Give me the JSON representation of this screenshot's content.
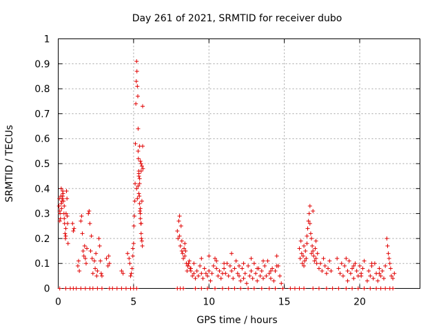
{
  "chart_data": {
    "type": "scatter",
    "title": "Day 261 of 2021, SRMTID for receiver dubo",
    "xlabel": "GPS time / hours",
    "ylabel": "SRMTID / TECUs",
    "xlim": [
      0,
      24
    ],
    "ylim": [
      0,
      1
    ],
    "xticks": [
      0,
      5,
      10,
      15,
      20
    ],
    "xtick_labels": [
      "0",
      "5",
      "10",
      "15",
      "20"
    ],
    "yticks": [
      0,
      0.1,
      0.2,
      0.3,
      0.4,
      0.5,
      0.6,
      0.7,
      0.8,
      0.9,
      1
    ],
    "ytick_labels": [
      "0",
      "0.1",
      "0.2",
      "0.3",
      "0.4",
      "0.5",
      "0.6",
      "0.7",
      "0.8",
      "0.9",
      "1"
    ],
    "grid": true,
    "marker": "plus",
    "color": "#e00000",
    "series": [
      {
        "name": "SRMTID",
        "x": [
          0.05,
          0.08,
          0.1,
          0.12,
          0.15,
          0.18,
          0.2,
          0.22,
          0.25,
          0.28,
          0.3,
          0.32,
          0.35,
          0.38,
          0.4,
          0.42,
          0.45,
          0.48,
          0.5,
          0.52,
          0.55,
          0.58,
          0.6,
          0.62,
          0.65,
          0.1,
          0.2,
          0.3,
          0.4,
          0.5,
          0.95,
          1.0,
          1.05,
          1.3,
          1.35,
          1.4,
          1.5,
          1.55,
          1.6,
          1.65,
          1.7,
          1.75,
          1.8,
          1.85,
          1.9,
          2.0,
          2.05,
          2.1,
          2.15,
          2.2,
          2.25,
          2.3,
          2.4,
          2.45,
          2.5,
          2.55,
          2.6,
          2.7,
          2.75,
          2.8,
          2.85,
          2.9,
          3.2,
          3.3,
          3.35,
          3.4,
          4.2,
          4.3,
          4.6,
          4.7,
          4.75,
          4.8,
          4.85,
          4.9,
          4.95,
          4.95,
          5.0,
          5.02,
          5.05,
          5.08,
          5.1,
          5.12,
          5.15,
          5.18,
          5.2,
          5.22,
          5.25,
          5.28,
          5.3,
          5.32,
          5.35,
          5.38,
          5.4,
          5.42,
          5.45,
          5.48,
          5.5,
          5.52,
          5.55,
          5.58,
          5.6,
          5.62,
          5.2,
          5.25,
          5.3,
          5.35,
          5.4,
          5.45,
          5.5,
          5.55,
          5.6,
          5.3,
          5.35,
          5.4,
          5.45,
          5.5,
          5.35,
          5.4,
          5.45,
          5.5,
          5.55,
          7.9,
          7.95,
          8.0,
          8.05,
          8.1,
          8.15,
          8.2,
          8.25,
          8.3,
          8.35,
          8.4,
          8.45,
          8.5,
          8.55,
          8.6,
          8.65,
          8.7,
          8.75,
          8.8,
          8.9,
          9.0,
          9.1,
          9.2,
          9.3,
          9.4,
          9.5,
          9.6,
          9.7,
          9.8,
          9.9,
          10.0,
          10.1,
          10.2,
          10.3,
          10.4,
          10.5,
          10.6,
          10.7,
          10.8,
          10.9,
          11.0,
          11.1,
          11.2,
          11.3,
          11.4,
          11.5,
          11.6,
          11.7,
          11.8,
          11.9,
          8.05,
          8.2,
          8.4,
          8.6,
          8.8,
          9.0,
          9.5,
          10.0,
          10.5,
          11.0,
          11.5,
          12.0,
          12.0,
          12.1,
          12.2,
          12.3,
          12.4,
          12.5,
          12.6,
          12.7,
          12.8,
          12.9,
          13.0,
          13.1,
          13.2,
          13.3,
          13.4,
          13.5,
          13.6,
          13.7,
          13.8,
          13.9,
          14.0,
          14.1,
          14.2,
          14.3,
          14.4,
          14.5,
          14.6,
          14.7,
          14.8,
          12.3,
          12.8,
          13.2,
          13.6,
          14.1,
          14.5,
          16.0,
          16.05,
          16.1,
          16.15,
          16.2,
          16.25,
          16.3,
          16.35,
          16.4,
          16.45,
          16.5,
          16.55,
          16.6,
          16.65,
          16.7,
          16.75,
          16.8,
          16.85,
          16.9,
          16.95,
          17.0,
          17.05,
          17.1,
          17.15,
          17.2,
          17.3,
          17.4,
          17.5,
          17.6,
          17.7,
          17.8,
          17.9,
          18.0,
          18.1,
          16.5,
          16.7,
          16.9,
          17.1,
          16.3,
          16.8,
          18.5,
          18.6,
          18.7,
          18.8,
          18.9,
          19.0,
          19.1,
          19.2,
          19.3,
          19.4,
          19.5,
          19.6,
          19.7,
          19.8,
          19.9,
          20.0,
          20.1,
          20.2,
          20.3,
          20.5,
          20.6,
          20.7,
          20.8,
          20.9,
          21.0,
          21.1,
          21.2,
          21.3,
          21.4,
          21.5,
          21.6,
          21.7,
          21.8,
          21.85,
          21.9,
          21.95,
          22.0,
          22.05,
          22.1,
          22.2,
          22.3,
          19.2,
          19.6,
          20.1,
          20.8,
          21.3,
          0.1,
          0.5,
          0.8,
          1.0,
          1.2,
          1.5,
          1.8,
          2.1,
          2.3,
          2.6,
          2.9,
          3.4,
          3.6,
          3.9,
          4.2,
          4.5,
          4.8,
          5.0,
          5.2,
          7.9,
          8.1,
          8.3,
          9.1,
          9.5,
          9.9,
          10.4,
          10.9,
          11.3,
          11.7,
          12.1,
          12.6,
          13.0,
          13.5,
          14.0,
          14.4,
          14.9,
          15.4,
          15.7,
          16.0,
          16.3,
          16.9,
          17.3,
          17.8,
          18.2,
          18.6,
          19.1,
          19.5,
          19.9,
          20.3,
          20.7,
          21.1,
          21.4,
          21.7,
          22.0,
          22.2
        ],
        "y": [
          0.33,
          0.36,
          0.31,
          0.3,
          0.28,
          0.37,
          0.34,
          0.32,
          0.35,
          0.36,
          0.37,
          0.38,
          0.35,
          0.3,
          0.28,
          0.26,
          0.22,
          0.2,
          0.24,
          0.3,
          0.39,
          0.36,
          0.29,
          0.26,
          0.18,
          0.27,
          0.4,
          0.39,
          0.33,
          0.21,
          0.26,
          0.23,
          0.24,
          0.09,
          0.11,
          0.07,
          0.27,
          0.29,
          0.22,
          0.15,
          0.13,
          0.17,
          0.12,
          0.1,
          0.16,
          0.3,
          0.31,
          0.26,
          0.15,
          0.21,
          0.12,
          0.06,
          0.11,
          0.08,
          0.14,
          0.05,
          0.07,
          0.2,
          0.17,
          0.11,
          0.06,
          0.05,
          0.12,
          0.09,
          0.13,
          0.1,
          0.07,
          0.06,
          0.14,
          0.12,
          0.1,
          0.05,
          0.06,
          0.08,
          0.13,
          0.16,
          0.18,
          0.25,
          0.29,
          0.35,
          0.42,
          0.58,
          0.74,
          0.83,
          0.91,
          0.87,
          0.81,
          0.77,
          0.64,
          0.52,
          0.46,
          0.37,
          0.34,
          0.31,
          0.28,
          0.26,
          0.22,
          0.2,
          0.19,
          0.17,
          0.57,
          0.48,
          0.4,
          0.36,
          0.41,
          0.38,
          0.42,
          0.32,
          0.5,
          0.49,
          0.73,
          0.55,
          0.47,
          0.44,
          0.51,
          0.47,
          0.45,
          0.57,
          0.3,
          0.26,
          0.35,
          0.23,
          0.2,
          0.27,
          0.29,
          0.17,
          0.25,
          0.19,
          0.14,
          0.12,
          0.16,
          0.18,
          0.15,
          0.1,
          0.07,
          0.09,
          0.1,
          0.11,
          0.08,
          0.07,
          0.05,
          0.06,
          0.04,
          0.07,
          0.05,
          0.09,
          0.06,
          0.04,
          0.08,
          0.06,
          0.05,
          0.07,
          0.03,
          0.06,
          0.09,
          0.12,
          0.08,
          0.05,
          0.07,
          0.04,
          0.06,
          0.08,
          0.06,
          0.1,
          0.05,
          0.09,
          0.07,
          0.04,
          0.08,
          0.11,
          0.06,
          0.21,
          0.15,
          0.13,
          0.09,
          0.08,
          0.1,
          0.12,
          0.13,
          0.11,
          0.1,
          0.14,
          0.09,
          0.05,
          0.03,
          0.08,
          0.04,
          0.06,
          0.02,
          0.09,
          0.05,
          0.07,
          0.04,
          0.1,
          0.06,
          0.03,
          0.08,
          0.05,
          0.07,
          0.04,
          0.09,
          0.05,
          0.11,
          0.06,
          0.04,
          0.08,
          0.03,
          0.07,
          0.13,
          0.09,
          0.05,
          0.02,
          0.1,
          0.12,
          0.08,
          0.11,
          0.07,
          0.09,
          0.16,
          0.12,
          0.19,
          0.14,
          0.1,
          0.13,
          0.17,
          0.11,
          0.15,
          0.12,
          0.18,
          0.24,
          0.27,
          0.3,
          0.33,
          0.22,
          0.2,
          0.17,
          0.15,
          0.13,
          0.11,
          0.16,
          0.12,
          0.1,
          0.14,
          0.08,
          0.1,
          0.07,
          0.12,
          0.09,
          0.06,
          0.08,
          0.11,
          0.07,
          0.21,
          0.26,
          0.31,
          0.19,
          0.09,
          0.14,
          0.12,
          0.08,
          0.06,
          0.1,
          0.05,
          0.09,
          0.12,
          0.07,
          0.11,
          0.06,
          0.08,
          0.04,
          0.1,
          0.07,
          0.05,
          0.09,
          0.06,
          0.08,
          0.11,
          0.03,
          0.07,
          0.05,
          0.09,
          0.04,
          0.1,
          0.06,
          0.03,
          0.08,
          0.05,
          0.07,
          0.04,
          0.09,
          0.2,
          0.17,
          0.14,
          0.12,
          0.1,
          0.08,
          0.05,
          0.04,
          0.06,
          0.03,
          0.09,
          0.05,
          0.1,
          0.06,
          0,
          0,
          0,
          0,
          0,
          0,
          0,
          0,
          0,
          0,
          0,
          0,
          0,
          0,
          0,
          0,
          0,
          0,
          0,
          0,
          0,
          0,
          0,
          0,
          0,
          0,
          0,
          0,
          0,
          0,
          0,
          0,
          0,
          0,
          0,
          0,
          0,
          0,
          0,
          0,
          0,
          0,
          0,
          0,
          0,
          0,
          0,
          0,
          0,
          0,
          0,
          0,
          0,
          0,
          0
        ]
      }
    ]
  }
}
